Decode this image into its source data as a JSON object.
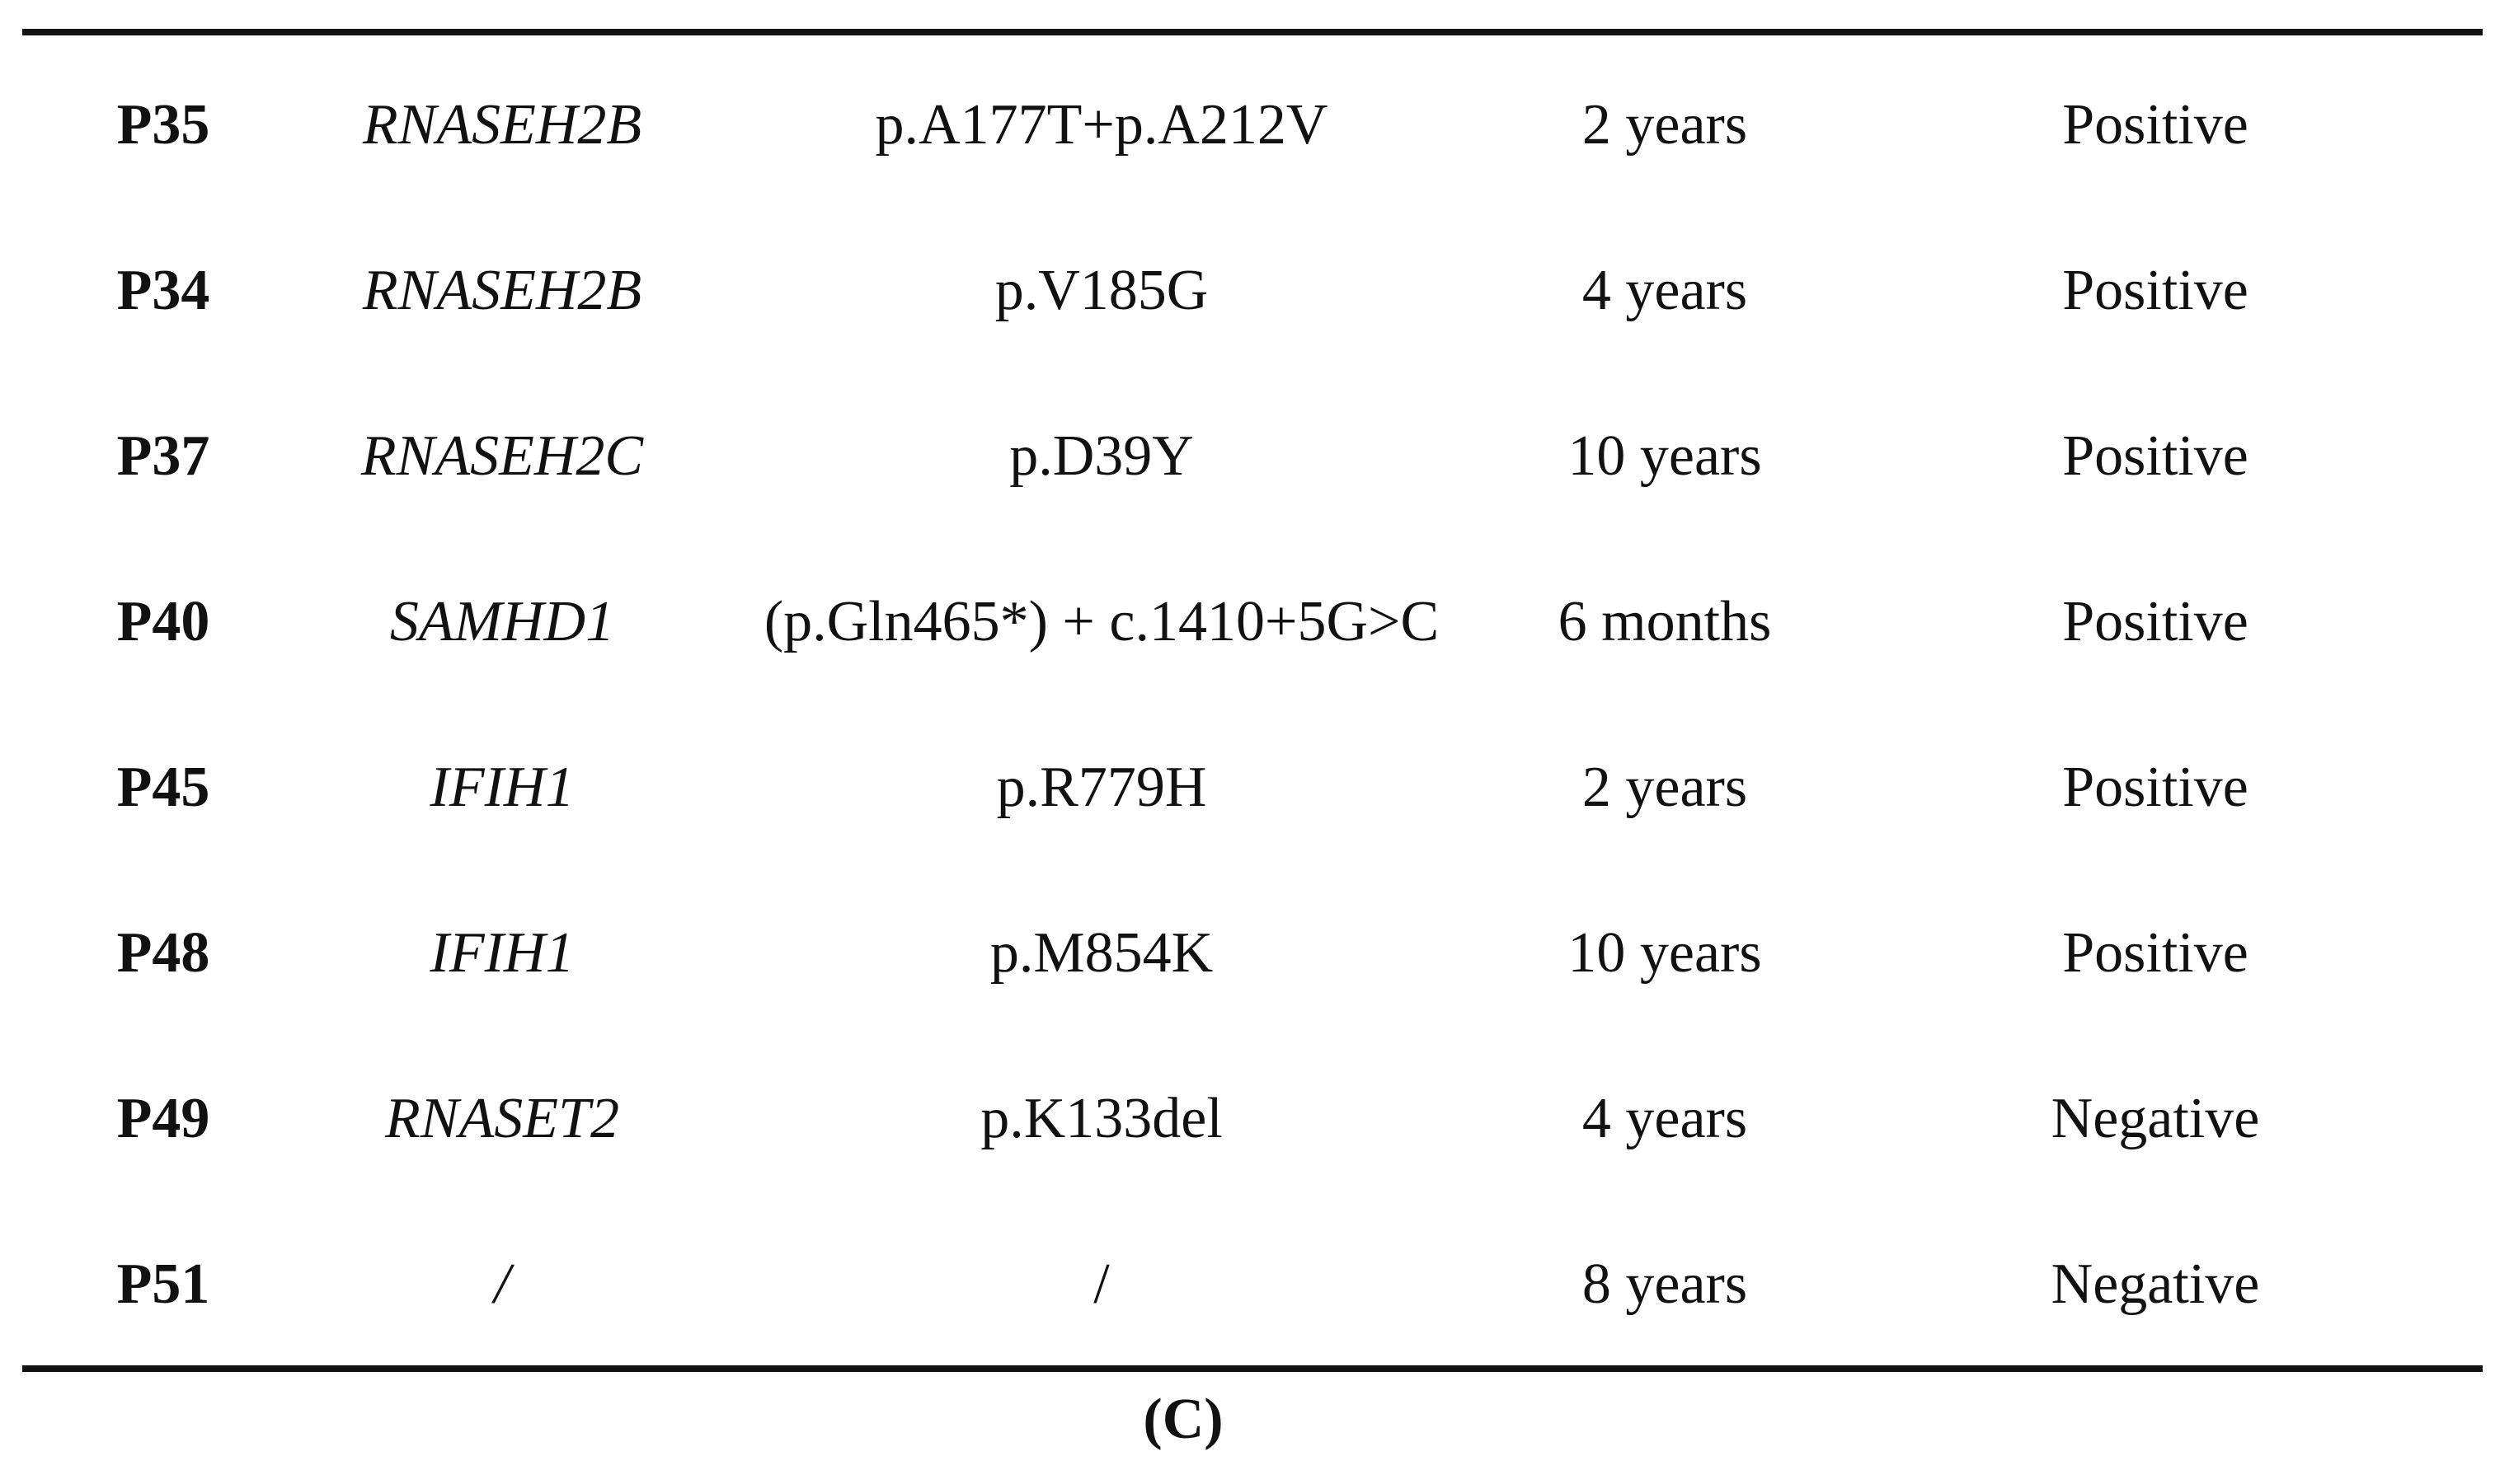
{
  "table": {
    "rows": [
      [
        "P35",
        "RNASEH2B",
        "p.A177T+p.A212V",
        "2 years",
        "Positive"
      ],
      [
        "P34",
        "RNASEH2B",
        "p.V185G",
        "4 years",
        "Positive"
      ],
      [
        "P37",
        "RNASEH2C",
        "p.D39Y",
        "10 years",
        "Positive"
      ],
      [
        "P40",
        "SAMHD1",
        "(p.Gln465*) + c.1410+5G>C",
        "6 months",
        "Positive"
      ],
      [
        "P45",
        "IFIH1",
        "p.R779H",
        "2 years",
        "Positive"
      ],
      [
        "P48",
        "IFIH1",
        "p.M854K",
        "10 years",
        "Positive"
      ],
      [
        "P49",
        "RNASET2",
        "p.K133del",
        "4 years",
        "Negative"
      ],
      [
        "P51",
        "/",
        "/",
        "8 years",
        "Negative"
      ]
    ]
  },
  "caption": "(C)"
}
